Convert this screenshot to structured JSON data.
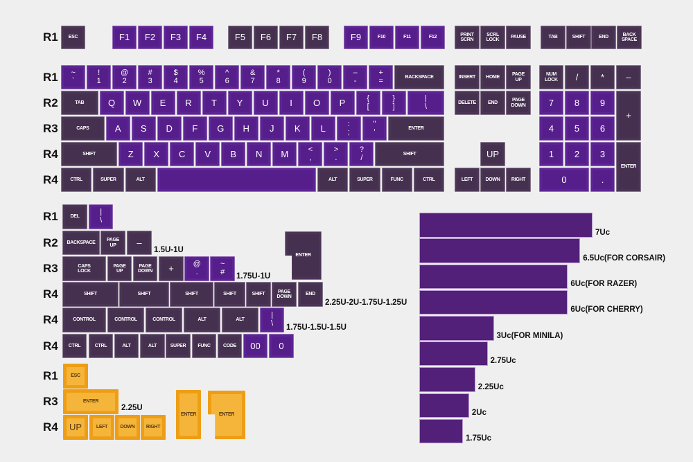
{
  "row_labels": {
    "function_row": [
      "R1"
    ],
    "main": [
      "R1",
      "R2",
      "R3",
      "R4",
      "R4"
    ],
    "extras": [
      "R1",
      "R2",
      "R3",
      "R4",
      "R4",
      "R4"
    ],
    "orange": [
      "R1",
      "R3",
      "R4"
    ]
  },
  "function_row": [
    "ESC",
    "F1",
    "F2",
    "F3",
    "F4",
    "F5",
    "F6",
    "F7",
    "F8",
    "F9",
    "F10",
    "F11",
    "F12"
  ],
  "nav_top": [
    "PRINT\nSCRN",
    "SCRL\nLOCK",
    "PAUSE",
    "TAB",
    "SHIFT",
    "END",
    "BACK\nSPACE"
  ],
  "main_rows": [
    [
      "~\n`",
      "!\n1",
      "@\n2",
      "#\n3",
      "$\n4",
      "%\n5",
      "^\n6",
      "&\n7",
      "*\n8",
      "(\n9",
      ")\n0",
      "–\n-",
      "+\n=",
      "BACKSPACE"
    ],
    [
      "TAB",
      "Q",
      "W",
      "E",
      "R",
      "T",
      "Y",
      "U",
      "I",
      "O",
      "P",
      "{\n[",
      "}\n]",
      "|\n\\"
    ],
    [
      "CAPS",
      "A",
      "S",
      "D",
      "F",
      "G",
      "H",
      "J",
      "K",
      "L",
      ":\n;",
      "\"\n'",
      "ENTER"
    ],
    [
      "SHIFT",
      "Z",
      "X",
      "C",
      "V",
      "B",
      "N",
      "M",
      "<\n,",
      ">\n.",
      "?\n/",
      "SHIFT"
    ],
    [
      "CTRL",
      "SUPER",
      "ALT",
      "",
      "ALT",
      "SUPER",
      "FUNC",
      "CTRL"
    ]
  ],
  "nav": [
    "INSERT",
    "HOME",
    "PAGE\nUP",
    "DELETE",
    "END",
    "PAGE\nDOWN",
    "UP",
    "LEFT",
    "DOWN",
    "RIGHT"
  ],
  "numpad": [
    "NUM\nLOCK",
    "/",
    "*",
    "–",
    "7",
    "8",
    "9",
    "+",
    "4",
    "5",
    "6",
    "1",
    "2",
    "3",
    "ENTER",
    "0",
    "."
  ],
  "extras": [
    [
      "DEL",
      "|\n\\"
    ],
    [
      "BACKSPACE",
      "PAGE\nUP",
      "–",
      "ENTER"
    ],
    [
      "CAPS\nLOCK",
      "PAGE\nUP",
      "PAGE\nDOWN",
      "+",
      "@\n.",
      "~\n#"
    ],
    [
      "SHIFT",
      "SHIFT",
      "SHIFT",
      "SHIFT",
      "SHIFT",
      "PAGE\nDOWN",
      "END"
    ],
    [
      "CONTROL",
      "CONTROL",
      "CONTROL",
      "ALT",
      "ALT",
      "|\n\\"
    ],
    [
      "CTRL",
      "CTRL",
      "ALT",
      "ALT",
      "SUPER",
      "FUNC",
      "CODE",
      "00",
      "0"
    ]
  ],
  "orange_keys": [
    "ESC",
    "ENTER",
    "UP",
    "LEFT",
    "DOWN",
    "RIGHT",
    "ENTER",
    "ENTER"
  ],
  "size_notes": [
    "1.5U-1U",
    "1.75U-1U",
    "2.25U-2U-1.75U-1.25U",
    "1.75U-1.5U-1.5U",
    "2.25U"
  ],
  "spacebars": [
    {
      "label": "7Uc",
      "units": 7
    },
    {
      "label": "6.5Uc(FOR CORSAIR)",
      "units": 6.5
    },
    {
      "label": "6Uc(FOR RAZER)",
      "units": 6
    },
    {
      "label": "6Uc(FOR CHERRY)",
      "units": 6
    },
    {
      "label": "3Uc(FOR MINILA)",
      "units": 3
    },
    {
      "label": "2.75Uc",
      "units": 2.75
    },
    {
      "label": "2.25Uc",
      "units": 2.25
    },
    {
      "label": "2Uc",
      "units": 2
    },
    {
      "label": "1.75Uc",
      "units": 1.75
    }
  ],
  "colors": {
    "dark": "#45304f",
    "purple": "#561e8b",
    "orange": "#ee9e16",
    "background": "#efefef"
  }
}
